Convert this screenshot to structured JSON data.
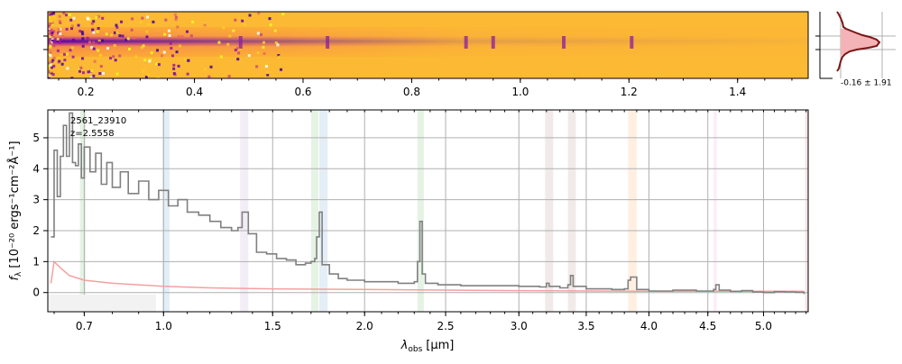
{
  "chart_data": [
    {
      "type": "heatmap",
      "panel": "2d-spectrum",
      "x_ticks": [
        "0.2",
        "0.4",
        "0.6",
        "0.8",
        "1.0",
        "1.2",
        "1.4"
      ],
      "x_tick_values": [
        0.2,
        0.4,
        0.6,
        0.8,
        1.0,
        1.2,
        1.4
      ],
      "xlim": [
        0.13,
        1.53
      ],
      "colormap": "plasma",
      "colors": {
        "low": "#1b0a86",
        "mid": "#b83289",
        "high": "#fcc234"
      },
      "emission_features_x": [
        0.485,
        0.645,
        0.9,
        0.95,
        1.08,
        1.205
      ]
    },
    {
      "type": "line",
      "panel": "1d-spectrum",
      "annotation_id": "2561_23910",
      "annotation_z": "z=2.5558",
      "xlabel_math": "λ",
      "xlabel_sub": "obs",
      "xlabel_unit": "[μm]",
      "ylabel_prefix": "f",
      "ylabel_sub": "λ",
      "ylabel_units": "[10⁻²⁰ ergs⁻¹cm⁻²Å⁻¹]",
      "x_ticks": [
        "0.7",
        "1.0",
        "1.5",
        "2.0",
        "2.5",
        "3.0",
        "3.5",
        "4.0",
        "4.5",
        "5.0"
      ],
      "x_tick_values": [
        0.7,
        1.0,
        1.5,
        2.0,
        2.5,
        3.0,
        3.5,
        4.0,
        4.5,
        5.0
      ],
      "xlim": [
        0.58,
        5.42
      ],
      "y_ticks": [
        "0",
        "1",
        "2",
        "3",
        "4",
        "5"
      ],
      "y_tick_values": [
        0,
        1,
        2,
        3,
        4,
        5
      ],
      "ylim": [
        -0.62,
        5.9
      ],
      "grid": true,
      "series": [
        {
          "role": "flux",
          "color": "#808080",
          "x": [
            0.59,
            0.6,
            0.61,
            0.62,
            0.63,
            0.64,
            0.65,
            0.66,
            0.67,
            0.68,
            0.69,
            0.7,
            0.72,
            0.74,
            0.76,
            0.78,
            0.8,
            0.83,
            0.86,
            0.9,
            0.94,
            0.98,
            1.02,
            1.06,
            1.1,
            1.15,
            1.2,
            1.25,
            1.3,
            1.33,
            1.35,
            1.38,
            1.42,
            1.47,
            1.52,
            1.57,
            1.62,
            1.67,
            1.7,
            1.72,
            1.73,
            1.745,
            1.76,
            1.8,
            1.85,
            1.9,
            2.0,
            2.1,
            2.2,
            2.3,
            2.32,
            2.335,
            2.35,
            2.37,
            2.45,
            2.6,
            2.8,
            3.0,
            3.15,
            3.2,
            3.22,
            3.3,
            3.36,
            3.38,
            3.4,
            3.5,
            3.7,
            3.8,
            3.83,
            3.85,
            3.9,
            4.0,
            4.2,
            4.4,
            4.55,
            4.57,
            4.6,
            4.7,
            4.8,
            4.9,
            5.0,
            5.1,
            5.2,
            5.3,
            5.38
          ],
          "values": [
            1.8,
            4.6,
            3.1,
            4.4,
            5.4,
            4.4,
            5.8,
            4.2,
            4.1,
            4.8,
            3.7,
            4.7,
            3.9,
            4.5,
            3.5,
            4.2,
            3.4,
            3.9,
            3.2,
            3.6,
            3.0,
            3.3,
            2.8,
            3.0,
            2.6,
            2.5,
            2.3,
            2.1,
            2.0,
            2.1,
            2.6,
            1.9,
            1.3,
            1.25,
            1.1,
            1.05,
            0.9,
            0.95,
            1.0,
            1.1,
            1.8,
            2.6,
            0.9,
            0.6,
            0.45,
            0.4,
            0.35,
            0.35,
            0.3,
            0.35,
            1.0,
            2.3,
            0.6,
            0.3,
            0.25,
            0.22,
            0.22,
            0.2,
            0.18,
            0.3,
            0.2,
            0.15,
            0.25,
            0.55,
            0.2,
            0.12,
            0.1,
            0.12,
            0.4,
            0.5,
            0.1,
            0.05,
            0.08,
            0.05,
            0.1,
            0.25,
            0.08,
            0.04,
            0.06,
            0.02,
            0.0,
            0.03,
            0.02,
            0.01,
            -0.05
          ]
        },
        {
          "role": "error",
          "color": "#f4a0a0",
          "x": [
            0.59,
            0.6,
            0.62,
            0.65,
            0.7,
            0.8,
            0.9,
            1.0,
            1.2,
            1.5,
            2.0,
            2.5,
            3.0,
            3.5,
            4.0,
            4.5,
            5.0,
            5.38
          ],
          "values": [
            0.3,
            1.0,
            0.8,
            0.55,
            0.4,
            0.3,
            0.25,
            0.2,
            0.15,
            0.12,
            0.1,
            0.08,
            0.06,
            0.05,
            0.04,
            0.04,
            0.04,
            0.04
          ]
        }
      ],
      "line_bands": [
        {
          "x0": 0.685,
          "x1": 0.705,
          "color": "#2ca02c"
        },
        {
          "x0": 0.995,
          "x1": 1.025,
          "color": "#1f77b4"
        },
        {
          "x0": 1.34,
          "x1": 1.38,
          "color": "#9467bd"
        },
        {
          "x0": 1.7,
          "x1": 1.74,
          "color": "#2ca02c"
        },
        {
          "x0": 1.745,
          "x1": 1.79,
          "color": "#1f77b4"
        },
        {
          "x0": 2.32,
          "x1": 2.36,
          "color": "#2ca02c"
        },
        {
          "x0": 3.19,
          "x1": 3.25,
          "color": "#8c564b"
        },
        {
          "x0": 3.36,
          "x1": 3.42,
          "color": "#8c564b"
        },
        {
          "x0": 3.83,
          "x1": 3.9,
          "color": "#ff7f0e"
        },
        {
          "x0": 4.55,
          "x1": 4.58,
          "color": "#e377c2"
        },
        {
          "x0": 5.39,
          "x1": 5.42,
          "color": "#d62728"
        }
      ]
    },
    {
      "type": "line",
      "panel": "spatial-profile",
      "label": "-0.16 ± 1.91",
      "profile_color": "#7a1515",
      "fill_color": "#f4b3b6"
    }
  ]
}
